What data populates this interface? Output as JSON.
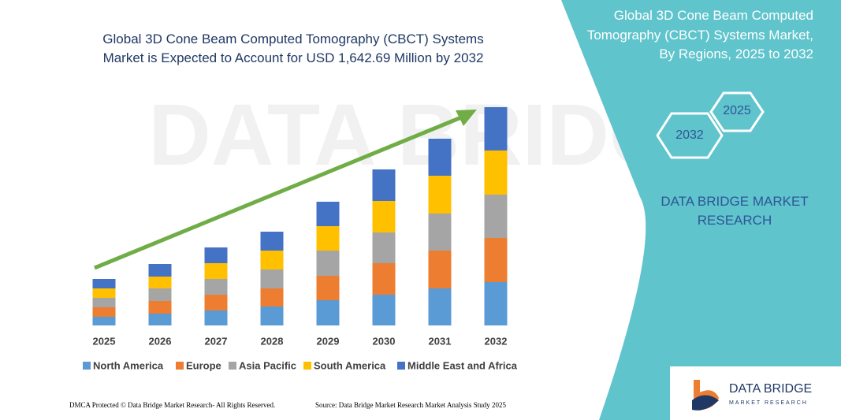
{
  "chart_data": {
    "type": "stacked-bar",
    "title": "Global 3D Cone Beam Computed Tomography (CBCT) Systems Market is Expected to Account for USD 1,642.69 Million by 2032",
    "categories": [
      "2025",
      "2026",
      "2027",
      "2028",
      "2029",
      "2030",
      "2031",
      "2032"
    ],
    "series": [
      {
        "name": "North America",
        "color": "#5b9bd5",
        "values": [
          11,
          15,
          19,
          24,
          32,
          39,
          47,
          55
        ]
      },
      {
        "name": "Europe",
        "color": "#ed7d31",
        "values": [
          12,
          16,
          20,
          23,
          31,
          40,
          48,
          56
        ]
      },
      {
        "name": "Asia Pacific",
        "color": "#a5a5a5",
        "values": [
          12,
          16,
          20,
          24,
          32,
          39,
          47,
          55
        ]
      },
      {
        "name": "South America",
        "color": "#ffc000",
        "values": [
          12,
          15,
          20,
          24,
          31,
          40,
          48,
          56
        ]
      },
      {
        "name": "Middle East and Africa",
        "color": "#4472c4",
        "values": [
          12,
          16,
          20,
          24,
          31,
          40,
          47,
          55
        ]
      }
    ]
  },
  "panel": {
    "title": "Global 3D Cone Beam Computed Tomography (CBCT) Systems Market, By Regions, 2025 to 2032",
    "hex_start": "2025",
    "hex_end": "2032",
    "brand": "DATA BRIDGE MARKET RESEARCH"
  },
  "footer": {
    "left": "DMCA Protected © Data Bridge Market Research- All Rights Reserved.",
    "right": "Source: Data Bridge Market Research Market Analysis Study 2025"
  },
  "logo": {
    "name": "DATA BRIDGE",
    "tagline": "MARKET RESEARCH"
  }
}
